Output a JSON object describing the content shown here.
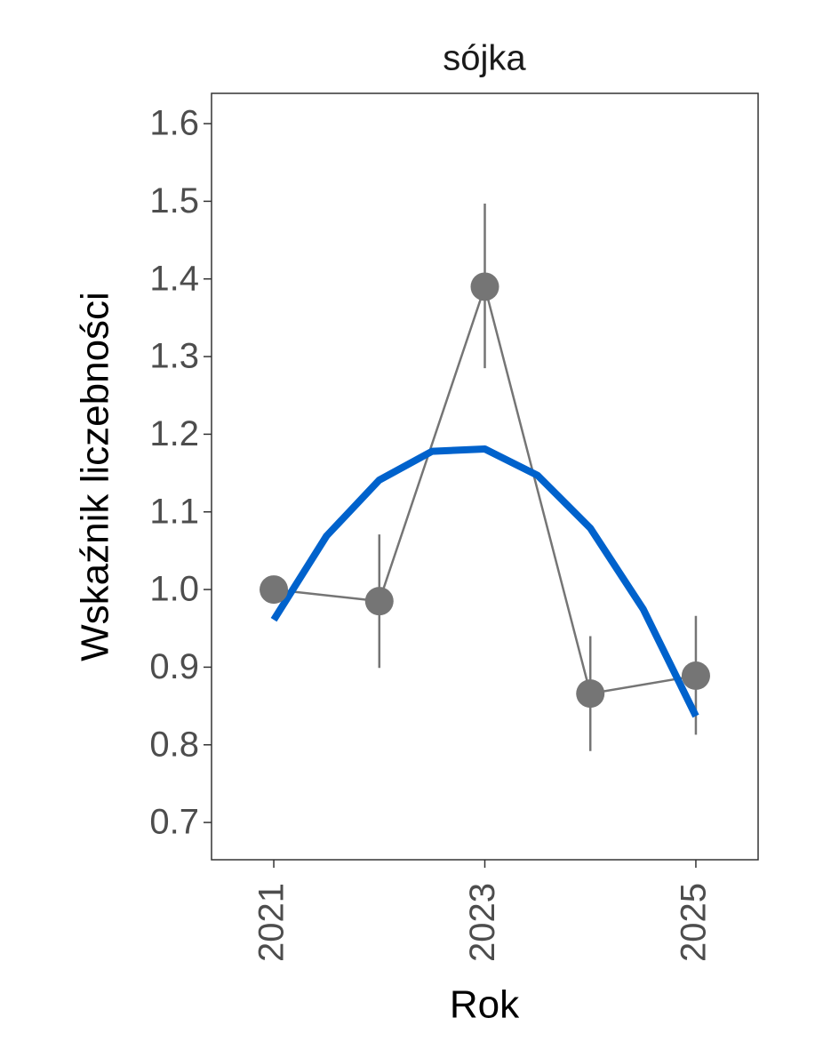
{
  "chart_data": {
    "type": "line",
    "title": "sójka",
    "xlabel": "Rok",
    "ylabel": "Wskaźnik liczebności",
    "x": [
      2021,
      2022,
      2023,
      2024,
      2025
    ],
    "values": [
      1.0,
      0.985,
      1.39,
      0.866,
      0.889
    ],
    "lower": [
      null,
      0.899,
      1.285,
      0.792,
      0.813
    ],
    "upper": [
      null,
      1.071,
      1.497,
      0.94,
      0.966
    ],
    "color": "#757575",
    "trend": {
      "color": "#0062cc",
      "x": [
        2021,
        2021.5,
        2022,
        2022.5,
        2023,
        2023.5,
        2024,
        2024.5,
        2025
      ],
      "values": [
        0.961,
        1.069,
        1.141,
        1.178,
        1.181,
        1.147,
        1.079,
        0.975,
        0.837
      ]
    },
    "xlim": [
      2020.41,
      2025.59
    ],
    "xticks": [
      2021,
      2023,
      2025
    ],
    "ylim": [
      0.652,
      1.639
    ],
    "yticks": [
      {
        "value": 0.7,
        "label": "0.7"
      },
      {
        "value": 0.8,
        "label": "0.8"
      },
      {
        "value": 0.9,
        "label": "0.9"
      },
      {
        "value": 1.0,
        "label": "1.0"
      },
      {
        "value": 1.1,
        "label": "1.1"
      },
      {
        "value": 1.2,
        "label": "1.2"
      },
      {
        "value": 1.3,
        "label": "1.3"
      },
      {
        "value": 1.4,
        "label": "1.4"
      },
      {
        "value": 1.5,
        "label": "1.5"
      },
      {
        "value": 1.6,
        "label": "1.6"
      }
    ],
    "grid": false
  }
}
